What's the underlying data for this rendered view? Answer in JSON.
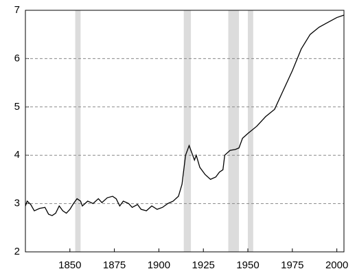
{
  "chart_data": {
    "type": "line",
    "x": [
      1825,
      1826,
      1828,
      1830,
      1833,
      1836,
      1838,
      1840,
      1842,
      1844,
      1846,
      1848,
      1850,
      1852,
      1854,
      1856,
      1857,
      1860,
      1863,
      1866,
      1868,
      1871,
      1874,
      1876,
      1878,
      1880,
      1883,
      1885,
      1888,
      1890,
      1893,
      1896,
      1899,
      1902,
      1905,
      1908,
      1911,
      1913,
      1915,
      1917,
      1918,
      1920,
      1921,
      1923,
      1926,
      1929,
      1932,
      1934,
      1936,
      1937,
      1940,
      1943,
      1945,
      1947,
      1950,
      1955,
      1960,
      1965,
      1970,
      1975,
      1980,
      1985,
      1990,
      1995,
      2000,
      2004
    ],
    "series": [
      {
        "color": "#000000",
        "values": [
          2.95,
          3.05,
          2.98,
          2.85,
          2.9,
          2.92,
          2.78,
          2.75,
          2.8,
          2.95,
          2.85,
          2.8,
          2.88,
          3.0,
          3.1,
          3.05,
          2.95,
          3.05,
          3.0,
          3.1,
          3.02,
          3.12,
          3.15,
          3.1,
          2.95,
          3.05,
          3.0,
          2.92,
          2.98,
          2.88,
          2.85,
          2.95,
          2.88,
          2.92,
          3.0,
          3.05,
          3.15,
          3.4,
          4.0,
          4.2,
          4.1,
          3.9,
          4.0,
          3.75,
          3.6,
          3.5,
          3.55,
          3.65,
          3.7,
          4.0,
          4.1,
          4.12,
          4.15,
          4.35,
          4.45,
          4.6,
          4.8,
          4.95,
          5.35,
          5.75,
          6.2,
          6.5,
          6.65,
          6.75,
          6.85,
          6.9
        ]
      }
    ],
    "shaded_periods": [
      [
        1853,
        1856
      ],
      [
        1914,
        1918
      ],
      [
        1939,
        1945
      ],
      [
        1950,
        1953
      ]
    ],
    "shade_color": "#dcdcdc",
    "xlim": [
      1825,
      2004
    ],
    "xticks": [
      1850,
      1875,
      1900,
      1925,
      1950,
      1975,
      2000
    ],
    "ylim": [
      2,
      7
    ],
    "yticks": [
      2,
      3,
      4,
      5,
      6,
      7
    ],
    "grid": true
  }
}
